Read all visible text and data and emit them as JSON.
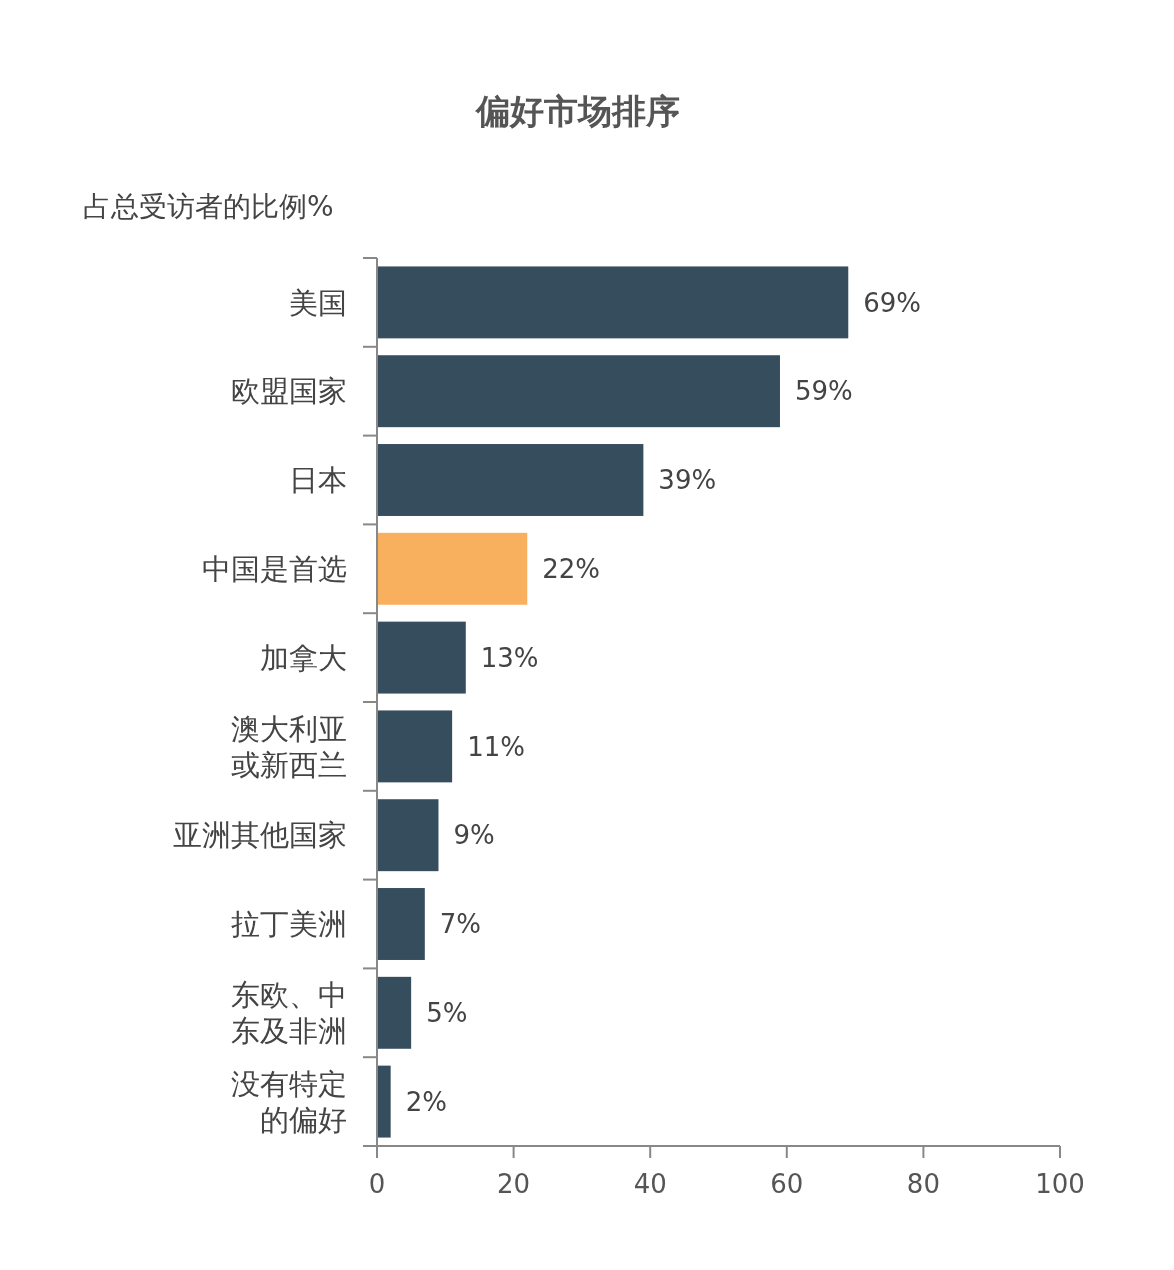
{
  "chart_data": {
    "type": "bar",
    "orientation": "horizontal",
    "title": "偏好市场排序",
    "subtitle": "占总受访者的比例%",
    "categories": [
      "美国",
      "欧盟国家",
      "日本",
      "中国是首选",
      "加拿大",
      "澳大利亚或新西兰",
      "亚洲其他国家",
      "拉丁美洲",
      "东欧、中东及非洲",
      "没有特定的偏好"
    ],
    "value_labels": [
      "69%",
      "59%",
      "39%",
      "22%",
      "13%",
      "11%",
      "9%",
      "7%",
      "5%",
      "2%"
    ],
    "values": [
      69,
      59,
      39,
      22,
      13,
      11,
      9,
      7,
      5,
      2
    ],
    "colors": [
      "#364d5e",
      "#364d5e",
      "#364d5e",
      "#f9b05e",
      "#364d5e",
      "#364d5e",
      "#364d5e",
      "#364d5e",
      "#364d5e",
      "#364d5e"
    ],
    "xlim": [
      0,
      100
    ],
    "xticks": [
      0,
      20,
      40,
      60,
      80,
      100
    ]
  }
}
